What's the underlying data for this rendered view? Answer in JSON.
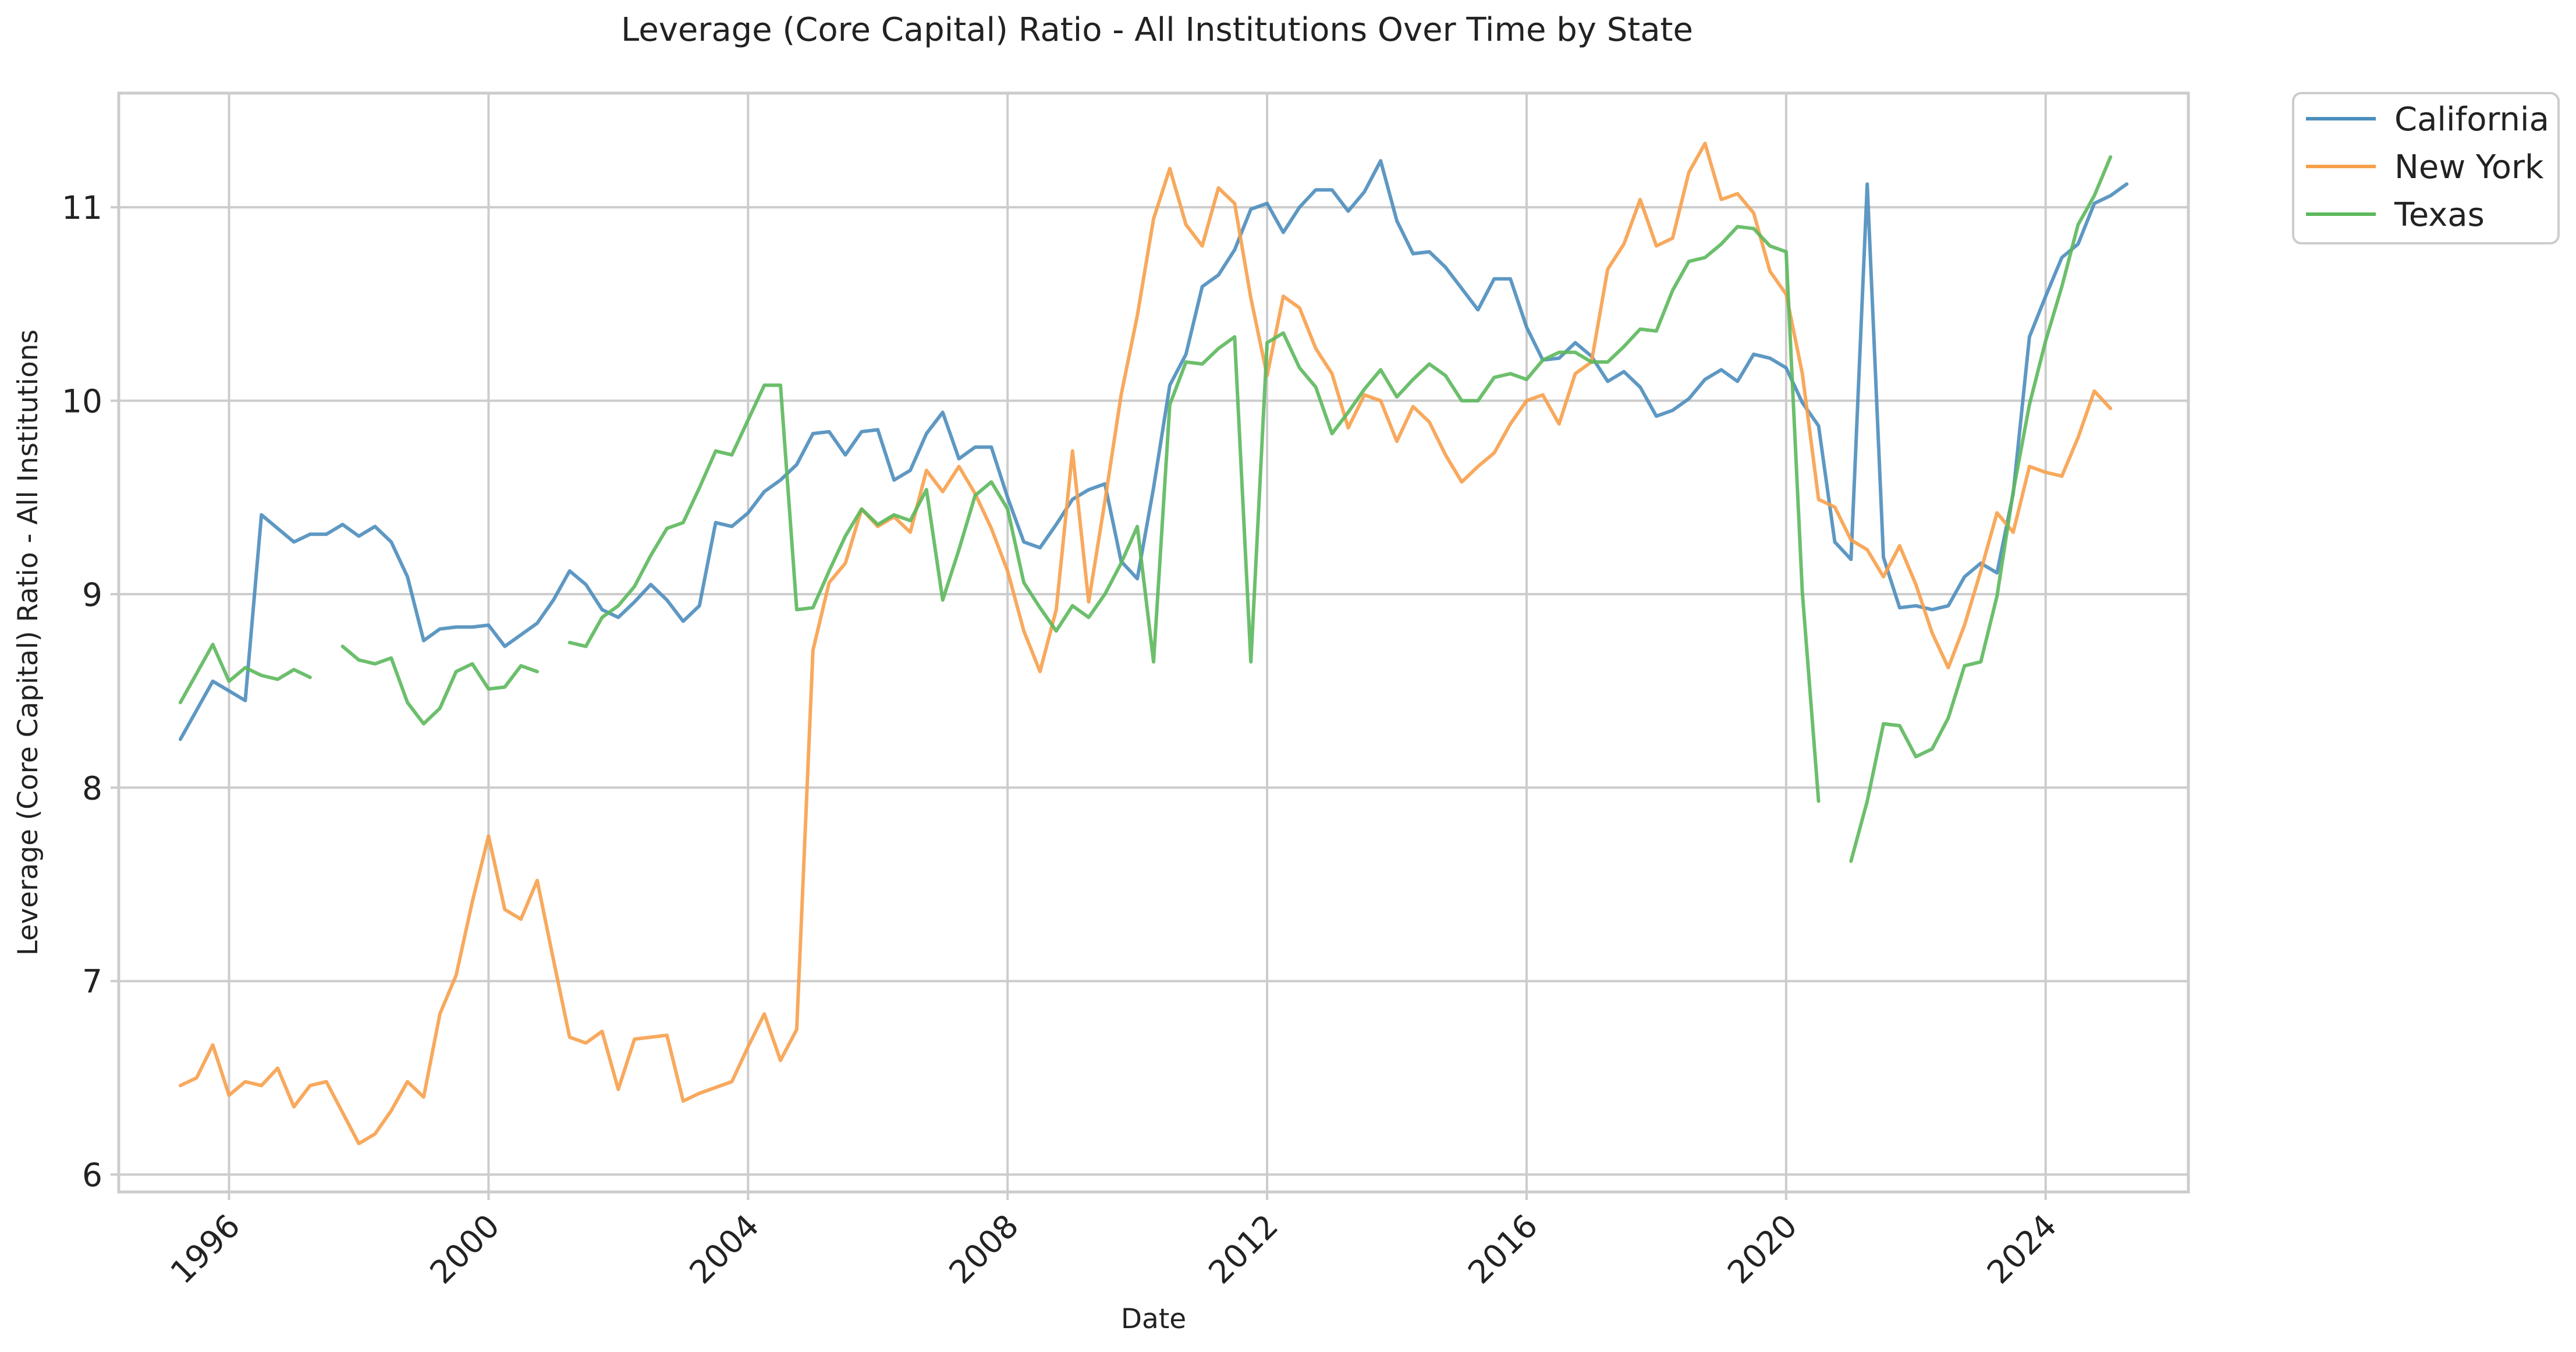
{
  "chart_data": {
    "type": "line",
    "title": "Leverage (Core Capital) Ratio - All Institutions Over Time by State",
    "xlabel": "Date",
    "ylabel": "Leverage (Core Capital) Ratio - All Institutions",
    "x_start": 1995.25,
    "x_step": 0.25,
    "xlim": [
      1994.3,
      2026.2
    ],
    "ylim": [
      5.91,
      11.59
    ],
    "x_ticks": [
      "1996",
      "2000",
      "2004",
      "2008",
      "2012",
      "2016",
      "2020",
      "2024"
    ],
    "y_ticks": [
      "6",
      "7",
      "8",
      "9",
      "10",
      "11"
    ],
    "grid": true,
    "legend_position": "outside-top-right",
    "series": [
      {
        "name": "California",
        "color": "#4c8dbc",
        "values": [
          8.25,
          8.4,
          8.55,
          8.5,
          8.45,
          9.41,
          9.34,
          9.27,
          9.31,
          9.31,
          9.36,
          9.3,
          9.35,
          9.27,
          9.09,
          8.76,
          8.82,
          8.83,
          8.83,
          8.84,
          8.73,
          8.79,
          8.85,
          8.97,
          9.12,
          9.05,
          8.92,
          8.88,
          8.96,
          9.05,
          8.97,
          8.86,
          8.94,
          9.37,
          9.35,
          9.42,
          9.53,
          9.59,
          9.67,
          9.83,
          9.84,
          9.72,
          9.84,
          9.85,
          9.59,
          9.64,
          9.83,
          9.94,
          9.7,
          9.76,
          9.76,
          9.5,
          9.27,
          9.24,
          9.36,
          9.49,
          9.54,
          9.57,
          9.17,
          9.08,
          9.55,
          10.08,
          10.24,
          10.59,
          10.65,
          10.78,
          10.99,
          11.02,
          10.87,
          11.0,
          11.09,
          11.09,
          10.98,
          11.08,
          11.24,
          10.93,
          10.76,
          10.77,
          10.69,
          10.58,
          10.47,
          10.63,
          10.63,
          10.38,
          10.21,
          10.22,
          10.3,
          10.23,
          10.1,
          10.15,
          10.07,
          9.92,
          9.95,
          10.01,
          10.11,
          10.16,
          10.1,
          10.24,
          10.22,
          10.17,
          9.99,
          9.87,
          9.27,
          9.18,
          11.12,
          9.19,
          8.93,
          8.94,
          8.92,
          8.94,
          9.09,
          9.16,
          9.11,
          9.52,
          10.33,
          10.54,
          10.74,
          10.81,
          11.02,
          11.06,
          11.12
        ],
        "gaps": []
      },
      {
        "name": "New York",
        "color": "#f7a04b",
        "values": [
          6.46,
          6.5,
          6.67,
          6.41,
          6.48,
          6.46,
          6.55,
          6.35,
          6.46,
          6.48,
          6.32,
          6.16,
          6.21,
          6.33,
          6.48,
          6.4,
          6.83,
          7.03,
          7.41,
          7.75,
          7.37,
          7.32,
          7.52,
          7.11,
          6.71,
          6.68,
          6.74,
          6.44,
          6.7,
          6.71,
          6.72,
          6.38,
          6.42,
          6.45,
          6.48,
          6.66,
          6.83,
          6.59,
          6.75,
          8.71,
          9.06,
          9.16,
          9.44,
          9.35,
          9.4,
          9.32,
          9.64,
          9.53,
          9.66,
          9.52,
          9.34,
          9.12,
          8.81,
          8.6,
          8.92,
          9.74,
          8.96,
          9.48,
          10.03,
          10.44,
          10.94,
          11.2,
          10.91,
          10.8,
          11.1,
          11.02,
          10.53,
          10.13,
          10.54,
          10.48,
          10.27,
          10.14,
          9.86,
          10.03,
          10.0,
          9.79,
          9.97,
          9.89,
          9.72,
          9.58,
          9.66,
          9.73,
          9.88,
          10.0,
          10.03,
          9.88,
          10.14,
          10.2,
          10.68,
          10.81,
          11.04,
          10.8,
          10.84,
          11.18,
          11.33,
          11.04,
          11.07,
          10.97,
          10.67,
          10.55,
          10.14,
          9.49,
          9.45,
          9.28,
          9.23,
          9.09,
          9.25,
          9.05,
          8.8,
          8.62,
          8.84,
          9.12,
          9.42,
          9.32,
          9.66,
          9.63,
          9.61,
          9.81,
          10.05,
          9.96
        ],
        "gaps": []
      },
      {
        "name": "Texas",
        "color": "#5cb85c",
        "values": [
          8.44,
          8.59,
          8.74,
          8.55,
          8.62,
          8.58,
          8.56,
          8.61,
          8.57,
          null,
          8.73,
          8.66,
          8.64,
          8.67,
          8.44,
          8.33,
          8.41,
          8.6,
          8.64,
          8.51,
          8.52,
          8.63,
          8.6,
          null,
          8.75,
          8.73,
          8.88,
          8.94,
          9.04,
          9.2,
          9.34,
          9.37,
          9.55,
          9.74,
          9.72,
          9.9,
          10.08,
          10.08,
          8.92,
          8.93,
          9.12,
          9.3,
          9.44,
          9.36,
          9.41,
          9.38,
          9.54,
          8.97,
          9.23,
          9.51,
          9.58,
          9.44,
          9.06,
          8.93,
          8.81,
          8.94,
          8.88,
          9.0,
          9.16,
          9.35,
          8.65,
          9.98,
          10.2,
          10.19,
          10.27,
          10.33,
          8.65,
          10.3,
          10.35,
          10.17,
          10.07,
          9.83,
          9.94,
          10.06,
          10.16,
          10.02,
          10.11,
          10.19,
          10.13,
          10.0,
          10.0,
          10.12,
          10.14,
          10.11,
          10.21,
          10.25,
          10.25,
          10.2,
          10.2,
          10.28,
          10.37,
          10.36,
          10.57,
          10.72,
          10.74,
          10.81,
          10.9,
          10.89,
          10.8,
          10.77,
          9.01,
          7.93,
          null,
          7.62,
          7.93,
          8.33,
          8.32,
          8.16,
          8.2,
          8.36,
          8.63,
          8.65,
          8.99,
          9.53,
          9.98,
          10.31,
          10.59,
          10.91,
          11.06,
          11.26
        ],
        "gaps": [
          9,
          23,
          102
        ]
      }
    ]
  }
}
